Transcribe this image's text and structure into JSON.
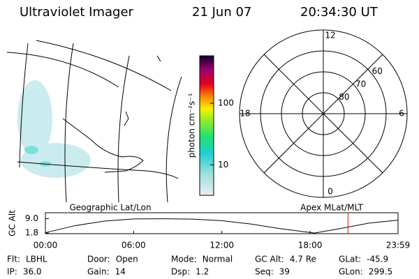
{
  "header": {
    "instrument": "Ultraviolet Imager",
    "date": "21 Jun 07",
    "time": "20:34:30 UT"
  },
  "colorbar": {
    "label": "photon cm⁻²s⁻¹",
    "scale": "log",
    "lim": [
      3.2,
      590
    ],
    "ticks": [
      10,
      100
    ]
  },
  "polar": {
    "lat_lim": [
      50,
      90
    ],
    "lat_rings": [
      80,
      70,
      60
    ],
    "mlt_labels": [
      {
        "value": 12,
        "label": "12"
      },
      {
        "value": 18,
        "label": "18"
      },
      {
        "value": 6,
        "label": "6"
      },
      {
        "value": 0,
        "label": "0"
      }
    ]
  },
  "chart_data": {
    "type": "line",
    "y_label": "GC Alt",
    "left_title": "Geographic Lat/Lon",
    "right_title": "Apex MLat/MLT",
    "x": [
      0,
      2,
      4,
      6,
      8,
      10,
      12,
      14,
      16,
      18.3,
      20,
      22,
      23.98
    ],
    "values": [
      2.0,
      5.5,
      7.8,
      8.9,
      9.0,
      8.8,
      8.0,
      6.3,
      4.0,
      1.8,
      4.0,
      6.8,
      8.3
    ],
    "color": "#000000",
    "marker_x": 20.575,
    "marker_color": "#ff0000",
    "xlim": [
      0,
      23.98
    ],
    "ylim": [
      1.5,
      12
    ],
    "xticks": [
      {
        "value": 0,
        "label": "00:00"
      },
      {
        "value": 6,
        "label": "06:00"
      },
      {
        "value": 12,
        "label": "12:00"
      },
      {
        "value": 18,
        "label": "18:00"
      },
      {
        "value": 23.98,
        "label": "23:59"
      }
    ],
    "yticks": [
      {
        "value": 9,
        "label": "9.0"
      },
      1.8
    ]
  },
  "footer": [
    [
      {
        "label": "Flt:",
        "value": "LBHL"
      },
      {
        "label": "Door:",
        "value": "Open"
      },
      {
        "label": "Mode:",
        "value": "Normal"
      },
      {
        "label": "GC Alt:",
        "value": "4.7 Re"
      },
      {
        "label": "GLat:",
        "value": "-45.9"
      }
    ],
    [
      {
        "label": "IP:",
        "value": "36.0"
      },
      {
        "label": "Gain:",
        "value": "14"
      },
      {
        "label": "Dsp:",
        "value": "1.2"
      },
      {
        "label": "Seq:",
        "value": "39"
      },
      {
        "label": "GLon:",
        "value": "299.5"
      }
    ]
  ]
}
